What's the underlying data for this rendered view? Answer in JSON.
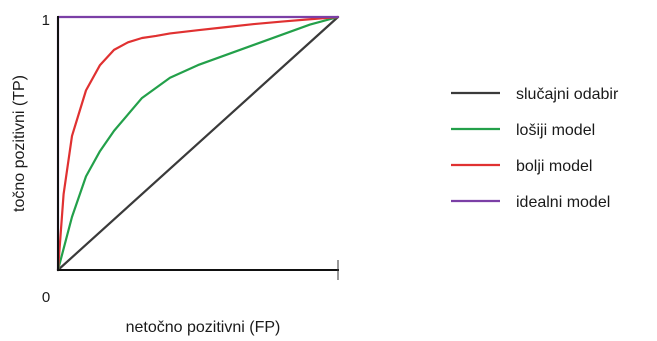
{
  "chart_data": {
    "type": "line",
    "title": "",
    "xlabel": "netočno pozitivni (FP)",
    "ylabel": "točno pozitivni (TP)",
    "xlim": [
      0,
      1
    ],
    "ylim": [
      0,
      1
    ],
    "ticks": {
      "x": [
        {
          "value": 0,
          "label": "0"
        }
      ],
      "y": [
        {
          "value": 1,
          "label": "1"
        }
      ]
    },
    "grid": false,
    "legend_position": "right",
    "series": [
      {
        "name": "slučajni odabir",
        "color": "#3a3a3a",
        "x": [
          0,
          1
        ],
        "y": [
          0,
          1
        ]
      },
      {
        "name": "lošiji model",
        "color": "#23a04a",
        "x": [
          0,
          0.05,
          0.1,
          0.15,
          0.2,
          0.3,
          0.4,
          0.5,
          0.6,
          0.7,
          0.8,
          0.9,
          1.0
        ],
        "y": [
          0,
          0.21,
          0.37,
          0.47,
          0.55,
          0.68,
          0.76,
          0.81,
          0.85,
          0.89,
          0.93,
          0.97,
          1.0
        ]
      },
      {
        "name": "bolji model",
        "color": "#e03131",
        "x": [
          0,
          0.02,
          0.05,
          0.1,
          0.15,
          0.2,
          0.25,
          0.3,
          0.35,
          0.4,
          0.5,
          0.6,
          0.7,
          0.8,
          0.9,
          1.0
        ],
        "y": [
          0,
          0.3,
          0.53,
          0.71,
          0.81,
          0.87,
          0.9,
          0.917,
          0.925,
          0.935,
          0.948,
          0.96,
          0.972,
          0.982,
          0.991,
          1.0
        ]
      },
      {
        "name": "idealni model",
        "color": "#7b3fa6",
        "x": [
          0,
          0,
          1
        ],
        "y": [
          0,
          1,
          1
        ]
      }
    ]
  }
}
